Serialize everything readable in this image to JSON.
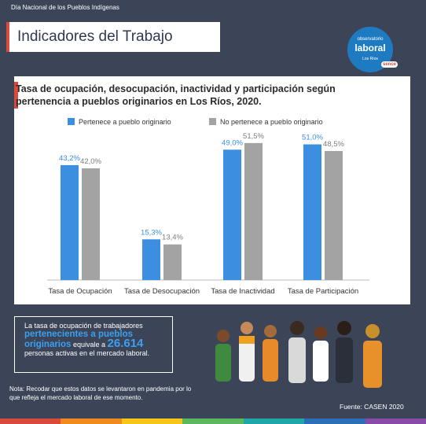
{
  "header": {
    "event_label": "Día Nacional de los Pueblos Indígenas",
    "page_title": "Indicadores del Trabajo"
  },
  "logo": {
    "line1": "observatorio",
    "line2": "laboral",
    "line3": "Los Ríos",
    "badge": "sence"
  },
  "chart_data": {
    "type": "bar",
    "title": "Tasa de ocupación, desocupación, inactividad y participación según pertenencia a pueblos originarios en Los Ríos, 2020.",
    "categories": [
      "Tasa de Ocupación",
      "Tasa de Desocupación",
      "Tasa de Inactividad",
      "Tasa de Participación"
    ],
    "series": [
      {
        "name": "Pertenece a pueblo originario",
        "values": [
          43.2,
          15.3,
          49.0,
          51.0
        ],
        "labels": [
          "43,2%",
          "15,3%",
          "49,0%",
          "51,0%"
        ],
        "color": "#3b8ee0"
      },
      {
        "name": "No pertenece a pueblo originario",
        "values": [
          42.0,
          13.4,
          51.5,
          48.5
        ],
        "labels": [
          "42,0%",
          "13,4%",
          "51,5%",
          "48,5%"
        ],
        "color": "#a3a3a3"
      }
    ],
    "ylim": [
      0,
      55
    ],
    "grid": false,
    "legend": "top"
  },
  "info": {
    "text1": "La tasa de ocupación de trabajadores",
    "highlight": "pertenecientes a pueblos originarios",
    "text2": "equivale a",
    "number": "26.614",
    "text3": "personas activas en el mercado laboral."
  },
  "note": "Nota: Recodar que estos datos se levantaron en pandemia por lo que refleja el mercado laboral de ese momento.",
  "source": "Fuente: CASEN 2020",
  "colors": {
    "background": "#3c4558",
    "accent_red": "#d94a3a",
    "blue": "#3b8ee0",
    "grey": "#a3a3a3",
    "highlight": "#3aa0f0"
  }
}
